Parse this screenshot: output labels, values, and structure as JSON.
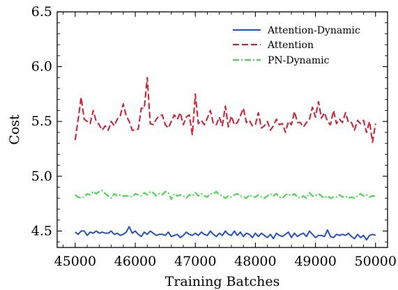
{
  "chart_data": {
    "type": "line",
    "title": "",
    "xlabel": "Training Batches",
    "ylabel": "Cost",
    "xlim": [
      44700,
      50200
    ],
    "ylim": [
      4.35,
      6.5
    ],
    "xticks": [
      45000,
      46000,
      47000,
      48000,
      49000,
      50000
    ],
    "yticks": [
      4.5,
      5.0,
      5.5,
      6.0,
      6.5
    ],
    "xtick_labels": [
      "45000",
      "46000",
      "47000",
      "48000",
      "49000",
      "50000"
    ],
    "ytick_labels": [
      "4.5",
      "5.0",
      "5.5",
      "6.0",
      "6.5"
    ],
    "grid": false,
    "legend_position": "top-right",
    "series": [
      {
        "name": "Attention-Dynamic",
        "color": "#1f4fe0",
        "linestyle": "solid",
        "x": [
          45000,
          45050,
          45100,
          45150,
          45200,
          45250,
          45300,
          45350,
          45400,
          45450,
          45500,
          45550,
          45600,
          45650,
          45700,
          45750,
          45800,
          45850,
          45900,
          45950,
          46000,
          46050,
          46100,
          46150,
          46200,
          46250,
          46300,
          46350,
          46400,
          46450,
          46500,
          46550,
          46600,
          46650,
          46700,
          46750,
          46800,
          46850,
          46900,
          46950,
          47000,
          47050,
          47100,
          47150,
          47200,
          47250,
          47300,
          47350,
          47400,
          47450,
          47500,
          47550,
          47600,
          47650,
          47700,
          47750,
          47800,
          47850,
          47900,
          47950,
          48000,
          48050,
          48100,
          48150,
          48200,
          48250,
          48300,
          48350,
          48400,
          48450,
          48500,
          48550,
          48600,
          48650,
          48700,
          48750,
          48800,
          48850,
          48900,
          48950,
          49000,
          49050,
          49100,
          49150,
          49200,
          49250,
          49300,
          49350,
          49400,
          49450,
          49500,
          49550,
          49600,
          49650,
          49700,
          49750,
          49800,
          49850,
          49900,
          49950,
          50000
        ],
        "y": [
          4.49,
          4.47,
          4.5,
          4.5,
          4.46,
          4.49,
          4.48,
          4.5,
          4.48,
          4.49,
          4.48,
          4.48,
          4.5,
          4.47,
          4.48,
          4.46,
          4.47,
          4.49,
          4.54,
          4.48,
          4.5,
          4.47,
          4.45,
          4.49,
          4.47,
          4.5,
          4.48,
          4.46,
          4.47,
          4.47,
          4.46,
          4.49,
          4.45,
          4.46,
          4.47,
          4.44,
          4.46,
          4.49,
          4.47,
          4.46,
          4.48,
          4.46,
          4.49,
          4.47,
          4.46,
          4.5,
          4.47,
          4.45,
          4.48,
          4.46,
          4.5,
          4.47,
          4.46,
          4.5,
          4.46,
          4.49,
          4.45,
          4.48,
          4.47,
          4.44,
          4.48,
          4.45,
          4.48,
          4.46,
          4.44,
          4.47,
          4.43,
          4.48,
          4.46,
          4.45,
          4.47,
          4.49,
          4.44,
          4.48,
          4.45,
          4.47,
          4.48,
          4.45,
          4.5,
          4.47,
          4.44,
          4.46,
          4.46,
          4.45,
          4.51,
          4.45,
          4.44,
          4.47,
          4.46,
          4.47,
          4.46,
          4.48,
          4.45,
          4.43,
          4.47,
          4.44,
          4.46,
          4.42,
          4.46,
          4.47,
          4.46
        ]
      },
      {
        "name": "Attention",
        "color": "#e8142a",
        "linestyle": "dashed",
        "x": [
          45000,
          45050,
          45100,
          45150,
          45200,
          45250,
          45300,
          45350,
          45400,
          45450,
          45500,
          45550,
          45600,
          45650,
          45700,
          45750,
          45800,
          45850,
          45900,
          45950,
          46000,
          46050,
          46100,
          46150,
          46200,
          46250,
          46300,
          46350,
          46400,
          46450,
          46500,
          46550,
          46600,
          46650,
          46700,
          46750,
          46800,
          46850,
          46900,
          46950,
          47000,
          47050,
          47100,
          47150,
          47200,
          47250,
          47300,
          47350,
          47400,
          47450,
          47500,
          47550,
          47600,
          47650,
          47700,
          47750,
          47800,
          47850,
          47900,
          47950,
          48000,
          48050,
          48100,
          48150,
          48200,
          48250,
          48300,
          48350,
          48400,
          48450,
          48500,
          48550,
          48600,
          48650,
          48700,
          48750,
          48800,
          48850,
          48900,
          48950,
          49000,
          49050,
          49100,
          49150,
          49200,
          49250,
          49300,
          49350,
          49400,
          49450,
          49500,
          49550,
          49600,
          49650,
          49700,
          49750,
          49800,
          49850,
          49900,
          49950,
          50000
        ],
        "y": [
          5.33,
          5.52,
          5.72,
          5.52,
          5.5,
          5.48,
          5.6,
          5.5,
          5.47,
          5.42,
          5.46,
          5.42,
          5.5,
          5.46,
          5.52,
          5.55,
          5.66,
          5.55,
          5.5,
          5.42,
          5.42,
          5.43,
          5.62,
          5.62,
          5.9,
          5.48,
          5.47,
          5.52,
          5.55,
          5.56,
          5.47,
          5.44,
          5.5,
          5.56,
          5.52,
          5.58,
          5.47,
          5.54,
          5.56,
          5.38,
          5.75,
          5.48,
          5.51,
          5.47,
          5.53,
          5.6,
          5.48,
          5.47,
          5.54,
          5.46,
          5.64,
          5.45,
          5.55,
          5.47,
          5.49,
          5.55,
          5.62,
          5.49,
          5.51,
          5.46,
          5.47,
          5.58,
          5.44,
          5.46,
          5.5,
          5.42,
          5.46,
          5.52,
          5.47,
          5.48,
          5.4,
          5.5,
          5.47,
          5.59,
          5.49,
          5.49,
          5.45,
          5.49,
          5.52,
          5.63,
          5.54,
          5.68,
          5.53,
          5.58,
          5.5,
          5.47,
          5.6,
          5.48,
          5.52,
          5.49,
          5.58,
          5.49,
          5.49,
          5.42,
          5.51,
          5.48,
          5.51,
          5.4,
          5.5,
          5.31,
          5.48
        ]
      },
      {
        "name": "PN-Dynamic",
        "color": "#2ee632",
        "linestyle": "dashdot",
        "x": [
          45000,
          45050,
          45100,
          45150,
          45200,
          45250,
          45300,
          45350,
          45400,
          45450,
          45500,
          45550,
          45600,
          45650,
          45700,
          45750,
          45800,
          45850,
          45900,
          45950,
          46000,
          46050,
          46100,
          46150,
          46200,
          46250,
          46300,
          46350,
          46400,
          46450,
          46500,
          46550,
          46600,
          46650,
          46700,
          46750,
          46800,
          46850,
          46900,
          46950,
          47000,
          47050,
          47100,
          47150,
          47200,
          47250,
          47300,
          47350,
          47400,
          47450,
          47500,
          47550,
          47600,
          47650,
          47700,
          47750,
          47800,
          47850,
          47900,
          47950,
          48000,
          48050,
          48100,
          48150,
          48200,
          48250,
          48300,
          48350,
          48400,
          48450,
          48500,
          48550,
          48600,
          48650,
          48700,
          48750,
          48800,
          48850,
          48900,
          48950,
          49000,
          49050,
          49100,
          49150,
          49200,
          49250,
          49300,
          49350,
          49400,
          49450,
          49500,
          49550,
          49600,
          49650,
          49700,
          49750,
          49800,
          49850,
          49900,
          49950,
          50000
        ],
        "y": [
          4.83,
          4.81,
          4.8,
          4.81,
          4.84,
          4.83,
          4.86,
          4.84,
          4.86,
          4.87,
          4.84,
          4.82,
          4.8,
          4.84,
          4.82,
          4.83,
          4.82,
          4.82,
          4.82,
          4.81,
          4.84,
          4.83,
          4.82,
          4.85,
          4.83,
          4.86,
          4.85,
          4.82,
          4.84,
          4.83,
          4.86,
          4.85,
          4.79,
          4.84,
          4.82,
          4.83,
          4.82,
          4.8,
          4.83,
          4.82,
          4.85,
          4.82,
          4.84,
          4.82,
          4.81,
          4.84,
          4.84,
          4.86,
          4.83,
          4.82,
          4.8,
          4.82,
          4.81,
          4.83,
          4.84,
          4.82,
          4.81,
          4.8,
          4.83,
          4.81,
          4.81,
          4.83,
          4.81,
          4.8,
          4.82,
          4.84,
          4.82,
          4.84,
          4.81,
          4.8,
          4.83,
          4.84,
          4.82,
          4.84,
          4.81,
          4.8,
          4.82,
          4.8,
          4.85,
          4.82,
          4.82,
          4.84,
          4.82,
          4.8,
          4.82,
          4.8,
          4.81,
          4.81,
          4.83,
          4.81,
          4.82,
          4.8,
          4.81,
          4.8,
          4.82,
          4.84,
          4.82,
          4.83,
          4.81,
          4.82,
          4.82
        ]
      }
    ]
  }
}
